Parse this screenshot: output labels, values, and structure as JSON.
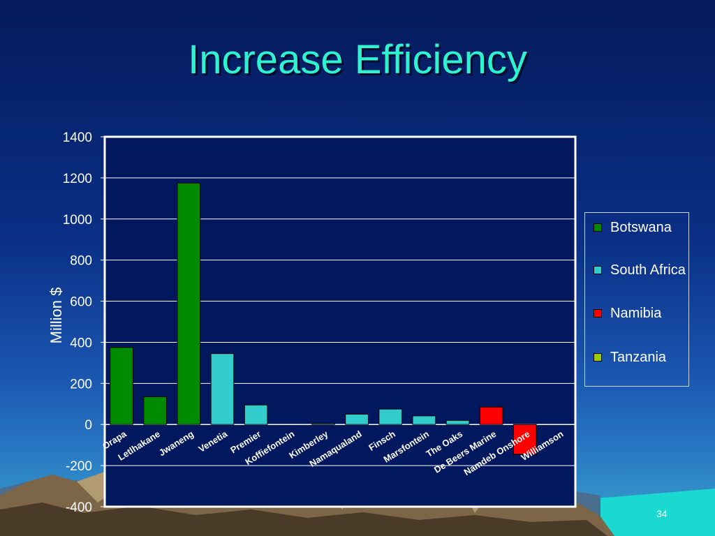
{
  "slide": {
    "title": "Increase Efficiency",
    "page_number": "34"
  },
  "colors": {
    "Botswana": "#008a00",
    "South Africa": "#33cccc",
    "Namibia": "#ff0000",
    "Tanzania": "#99cc00",
    "title": "#2ff3cf"
  },
  "chart_data": {
    "type": "bar",
    "title": "",
    "xlabel": "",
    "ylabel": "Million $",
    "ylim": [
      -400,
      1400
    ],
    "yticks": [
      -400,
      -200,
      0,
      200,
      400,
      600,
      800,
      1000,
      1200,
      1400
    ],
    "grid": true,
    "legend_position": "right",
    "categories": [
      "Orapa",
      "Letlhakane",
      "Jwaneng",
      "Venetia",
      "Premier",
      "Koffiefontein",
      "Kimberley",
      "Namaqualand",
      "Finsch",
      "Marsfontein",
      "The Oaks",
      "De Beers Marine",
      "Namdeb Onshore",
      "Williamson"
    ],
    "values": [
      375,
      135,
      1175,
      345,
      95,
      0,
      5,
      50,
      75,
      42,
      20,
      85,
      -145,
      0
    ],
    "groups": [
      "Botswana",
      "Botswana",
      "Botswana",
      "South Africa",
      "South Africa",
      "South Africa",
      "South Africa",
      "South Africa",
      "South Africa",
      "South Africa",
      "South Africa",
      "Namibia",
      "Namibia",
      "Tanzania"
    ],
    "legend": [
      "Botswana",
      "South Africa",
      "Namibia",
      "Tanzania"
    ]
  }
}
